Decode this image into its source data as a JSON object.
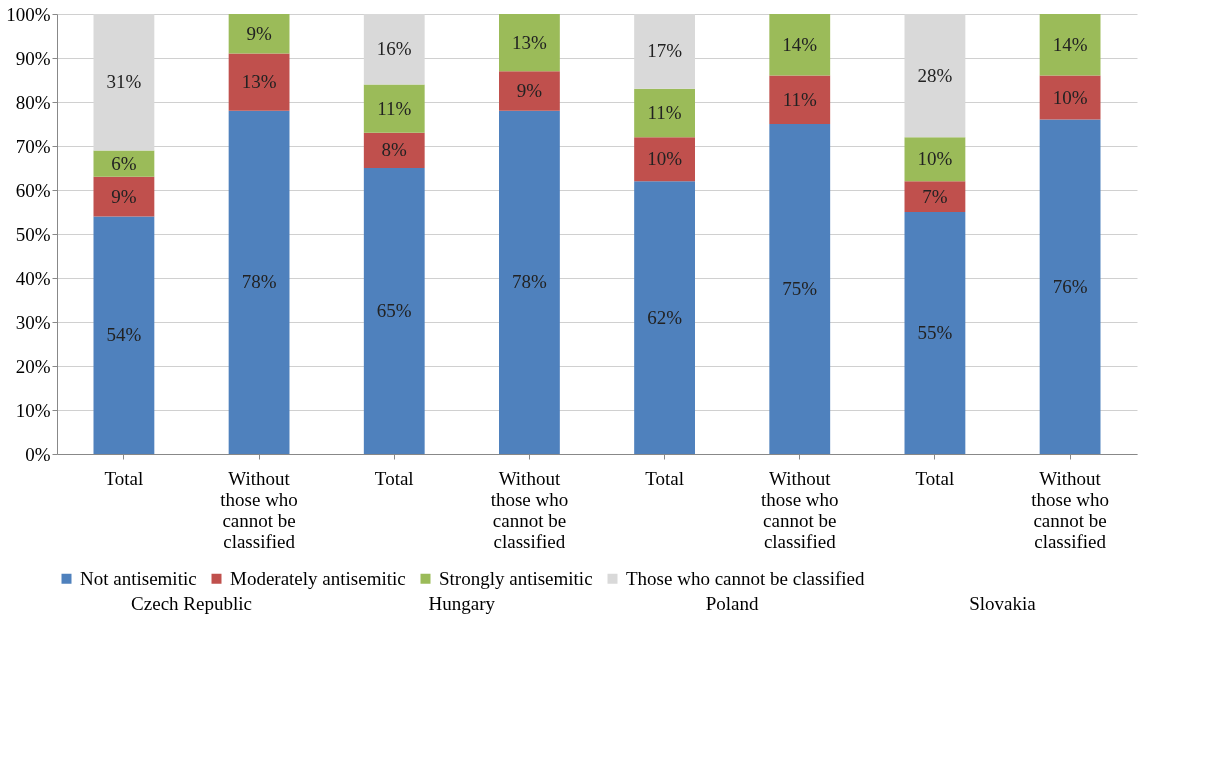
{
  "chart_data": {
    "type": "bar",
    "stacked": true,
    "categories": [
      "Total",
      "Without those who cannot be classified",
      "Total",
      "Without those who cannot be classified",
      "Total",
      "Without those who cannot be classified",
      "Total",
      "Without those who cannot be classified"
    ],
    "series": [
      {
        "name": "Not antisemitic",
        "color": "#4f81bd",
        "values": [
          54,
          78,
          65,
          78,
          62,
          75,
          55,
          76
        ],
        "value_labels": [
          "54%",
          "78%",
          "65%",
          "78%",
          "62%",
          "75%",
          "55%",
          "76%"
        ]
      },
      {
        "name": "Moderately antisemitic",
        "color": "#c0504d",
        "values": [
          9,
          13,
          8,
          9,
          10,
          11,
          7,
          10
        ],
        "value_labels": [
          "9%",
          "13%",
          "8%",
          "9%",
          "10%",
          "11%",
          "7%",
          "10%"
        ]
      },
      {
        "name": "Strongly antisemitic",
        "color": "#9bbb59",
        "values": [
          6,
          9,
          11,
          13,
          11,
          14,
          10,
          14
        ],
        "value_labels": [
          "6%",
          "9%",
          "11%",
          "13%",
          "11%",
          "14%",
          "10%",
          "14%"
        ]
      },
      {
        "name": "Those who cannot be classified",
        "color": "#d9d9d9",
        "values": [
          31,
          null,
          16,
          null,
          17,
          null,
          28,
          null
        ],
        "value_labels": [
          "31%",
          null,
          "16%",
          null,
          "17%",
          null,
          "28%",
          null
        ]
      }
    ],
    "ylim": [
      0,
      100
    ],
    "yticks": [
      {
        "value": 0,
        "label": "0%"
      },
      {
        "value": 10,
        "label": "10%"
      },
      {
        "value": 20,
        "label": "20%"
      },
      {
        "value": 30,
        "label": "30%"
      },
      {
        "value": 40,
        "label": "40%"
      },
      {
        "value": 50,
        "label": "50%"
      },
      {
        "value": 60,
        "label": "60%"
      },
      {
        "value": 70,
        "label": "70%"
      },
      {
        "value": 80,
        "label": "80%"
      },
      {
        "value": 90,
        "label": "90%"
      },
      {
        "value": 100,
        "label": "100%"
      }
    ],
    "annotations": [
      "Czech Republic",
      "Hungary",
      "Poland",
      "Slovakia"
    ],
    "grid": "y",
    "legend": "bottom"
  }
}
